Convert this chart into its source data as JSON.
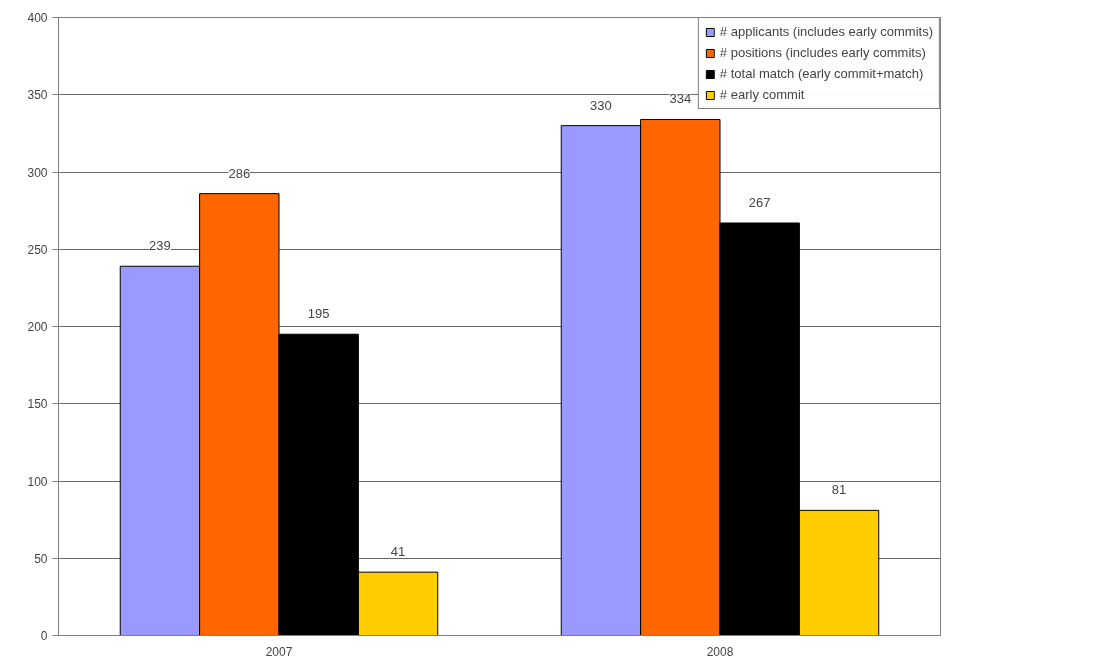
{
  "chart_data": {
    "type": "bar",
    "categories": [
      "2007",
      "2008"
    ],
    "series": [
      {
        "name": "# applicants (includes early commits)",
        "color": "#9999ff",
        "values": [
          239,
          330
        ]
      },
      {
        "name": "# positions (includes early commits)",
        "color": "#ff6600",
        "values": [
          286,
          334
        ]
      },
      {
        "name": "# total match (early commit+match)",
        "color": "#000000",
        "values": [
          195,
          267
        ]
      },
      {
        "name": "# early commit",
        "color": "#ffcc00",
        "values": [
          41,
          81
        ]
      }
    ],
    "ylim": [
      0,
      400
    ],
    "yticks": [
      0,
      50,
      100,
      150,
      200,
      250,
      300,
      350,
      400
    ],
    "grid": "y",
    "legend": "top right",
    "data_labels": true
  }
}
